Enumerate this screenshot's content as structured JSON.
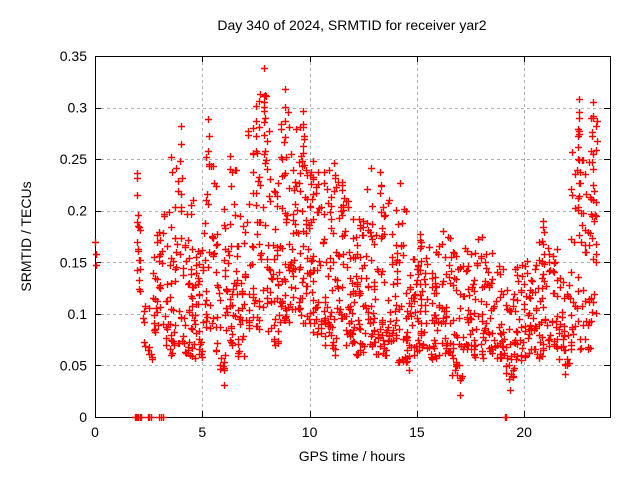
{
  "window": {
    "background": "#ffffff"
  },
  "chart_data": {
    "type": "scatter",
    "title": "Day 340 of 2024, SRMTID for receiver yar2",
    "xlabel": "GPS time / hours",
    "ylabel": "SRMTID / TECUs",
    "xlim": [
      0,
      24
    ],
    "ylim": [
      0,
      0.35
    ],
    "xticks": [
      0,
      5,
      10,
      15,
      20
    ],
    "xtick_labels": [
      "0",
      "5",
      "10",
      "15",
      "20"
    ],
    "yticks": [
      0,
      0.05,
      0.1,
      0.15,
      0.2,
      0.25,
      0.3,
      0.35
    ],
    "ytick_labels": [
      "0",
      "0.05",
      "0.1",
      "0.15",
      "0.2",
      "0.25",
      "0.3",
      "0.35"
    ],
    "grid": true,
    "legend": null,
    "marker": "plus",
    "marker_color": "#ff0000",
    "grid_color": "#b0b0b0",
    "axis_color": "#000000",
    "seed": 340,
    "points_explicit": [
      [
        0.0,
        0.17
      ],
      [
        0.03,
        0.158
      ],
      [
        0.03,
        0.147
      ],
      [
        1.95,
        0.237
      ],
      [
        1.97,
        0.215
      ],
      [
        2.0,
        0.196
      ],
      [
        2.02,
        0.185
      ],
      [
        1.98,
        0.17
      ],
      [
        2.0,
        0.163
      ],
      [
        2.03,
        0.152
      ],
      [
        1.97,
        0.143
      ],
      [
        2.05,
        0.133
      ],
      [
        2.1,
        0.122
      ],
      [
        2.3,
        0.103
      ],
      [
        3.55,
        0.252
      ],
      [
        3.6,
        0.238
      ],
      [
        4.0,
        0.282
      ],
      [
        4.02,
        0.265
      ],
      [
        3.98,
        0.248
      ],
      [
        4.05,
        0.232
      ],
      [
        5.28,
        0.289
      ],
      [
        5.3,
        0.272
      ],
      [
        5.26,
        0.258
      ],
      [
        5.32,
        0.243
      ],
      [
        6.02,
        0.031
      ],
      [
        6.0,
        0.046
      ],
      [
        6.04,
        0.06
      ],
      [
        6.3,
        0.253
      ],
      [
        6.28,
        0.24
      ],
      [
        7.5,
        0.302
      ],
      [
        7.52,
        0.287
      ],
      [
        7.48,
        0.272
      ],
      [
        7.5,
        0.258
      ],
      [
        7.88,
        0.338
      ],
      [
        7.9,
        0.312
      ],
      [
        7.87,
        0.301
      ],
      [
        7.91,
        0.29
      ],
      [
        7.89,
        0.273
      ],
      [
        7.92,
        0.258
      ],
      [
        7.9,
        0.246
      ],
      [
        8.85,
        0.318
      ],
      [
        8.87,
        0.301
      ],
      [
        8.84,
        0.287
      ],
      [
        8.86,
        0.271
      ],
      [
        8.88,
        0.252
      ],
      [
        8.85,
        0.237
      ],
      [
        9.7,
        0.297
      ],
      [
        9.68,
        0.284
      ],
      [
        9.72,
        0.27
      ],
      [
        9.7,
        0.256
      ],
      [
        9.73,
        0.244
      ],
      [
        11.15,
        0.246
      ],
      [
        11.18,
        0.232
      ],
      [
        12.85,
        0.241
      ],
      [
        13.3,
        0.238
      ],
      [
        13.34,
        0.224
      ],
      [
        14.2,
        0.227
      ],
      [
        14.62,
        0.046
      ],
      [
        17.0,
        0.021
      ],
      [
        17.02,
        0.036
      ],
      [
        16.98,
        0.05
      ],
      [
        19.35,
        0.026
      ],
      [
        19.38,
        0.042
      ],
      [
        19.4,
        0.056
      ],
      [
        21.9,
        0.042
      ],
      [
        22.0,
        0.05
      ],
      [
        20.9,
        0.19
      ],
      [
        20.92,
        0.179
      ],
      [
        20.88,
        0.168
      ],
      [
        20.91,
        0.158
      ],
      [
        20.93,
        0.148
      ],
      [
        20.87,
        0.139
      ],
      [
        22.55,
        0.308
      ],
      [
        22.56,
        0.296
      ],
      [
        22.54,
        0.29
      ],
      [
        22.57,
        0.274
      ],
      [
        22.53,
        0.262
      ],
      [
        22.55,
        0.249
      ],
      [
        22.58,
        0.238
      ],
      [
        22.54,
        0.227
      ],
      [
        22.56,
        0.214
      ],
      [
        22.52,
        0.204
      ],
      [
        23.2,
        0.305
      ],
      [
        23.22,
        0.29
      ],
      [
        23.18,
        0.272
      ],
      [
        23.2,
        0.255
      ],
      [
        23.23,
        0.24
      ],
      [
        23.19,
        0.225
      ],
      [
        23.21,
        0.21
      ],
      [
        23.17,
        0.195
      ]
    ],
    "zero_points_x": [
      1.85,
      1.9,
      1.96,
      2.02,
      2.08,
      2.15,
      2.45,
      2.52,
      2.62,
      3.0,
      3.08,
      3.17,
      19.1,
      19.17
    ],
    "density_bins": [
      [
        1.9,
        2.15,
        0.1,
        0.24,
        8
      ],
      [
        2.2,
        2.7,
        0.05,
        0.135,
        14
      ],
      [
        2.7,
        3.1,
        0.075,
        0.2,
        26
      ],
      [
        3.1,
        3.6,
        0.05,
        0.22,
        30
      ],
      [
        3.6,
        4.1,
        0.06,
        0.26,
        28
      ],
      [
        4.1,
        4.6,
        0.05,
        0.225,
        38
      ],
      [
        4.6,
        5.1,
        0.05,
        0.2,
        34
      ],
      [
        5.1,
        5.6,
        0.075,
        0.285,
        30
      ],
      [
        5.6,
        6.1,
        0.035,
        0.24,
        30
      ],
      [
        6.1,
        6.6,
        0.06,
        0.25,
        34
      ],
      [
        6.6,
        7.1,
        0.05,
        0.215,
        34
      ],
      [
        7.1,
        7.6,
        0.075,
        0.295,
        32
      ],
      [
        7.6,
        8.1,
        0.07,
        0.33,
        38
      ],
      [
        8.1,
        8.6,
        0.06,
        0.25,
        38
      ],
      [
        8.6,
        9.1,
        0.08,
        0.31,
        40
      ],
      [
        9.1,
        9.6,
        0.095,
        0.295,
        44
      ],
      [
        9.6,
        10.1,
        0.08,
        0.295,
        44
      ],
      [
        10.1,
        10.6,
        0.07,
        0.26,
        40
      ],
      [
        10.6,
        11.1,
        0.06,
        0.25,
        40
      ],
      [
        11.1,
        11.6,
        0.05,
        0.245,
        40
      ],
      [
        11.6,
        12.1,
        0.06,
        0.23,
        40
      ],
      [
        12.1,
        12.6,
        0.05,
        0.205,
        38
      ],
      [
        12.6,
        13.1,
        0.06,
        0.24,
        38
      ],
      [
        13.1,
        13.6,
        0.05,
        0.24,
        34
      ],
      [
        13.6,
        14.1,
        0.065,
        0.23,
        34
      ],
      [
        14.1,
        14.6,
        0.045,
        0.21,
        34
      ],
      [
        14.6,
        15.1,
        0.05,
        0.165,
        34
      ],
      [
        15.1,
        15.6,
        0.06,
        0.185,
        34
      ],
      [
        15.6,
        16.1,
        0.05,
        0.175,
        34
      ],
      [
        16.1,
        16.6,
        0.055,
        0.19,
        34
      ],
      [
        16.6,
        17.1,
        0.03,
        0.175,
        34
      ],
      [
        17.1,
        17.6,
        0.06,
        0.175,
        30
      ],
      [
        17.6,
        18.1,
        0.05,
        0.185,
        30
      ],
      [
        18.1,
        18.6,
        0.055,
        0.165,
        30
      ],
      [
        18.6,
        19.1,
        0.05,
        0.155,
        30
      ],
      [
        19.1,
        19.6,
        0.03,
        0.16,
        30
      ],
      [
        19.6,
        20.1,
        0.05,
        0.155,
        30
      ],
      [
        20.1,
        20.6,
        0.055,
        0.165,
        30
      ],
      [
        20.6,
        21.1,
        0.05,
        0.195,
        30
      ],
      [
        21.1,
        21.6,
        0.06,
        0.175,
        30
      ],
      [
        21.6,
        22.1,
        0.045,
        0.155,
        30
      ],
      [
        22.1,
        22.6,
        0.05,
        0.3,
        32
      ],
      [
        22.6,
        23.1,
        0.055,
        0.26,
        34
      ],
      [
        23.1,
        23.4,
        0.08,
        0.305,
        26
      ]
    ]
  }
}
